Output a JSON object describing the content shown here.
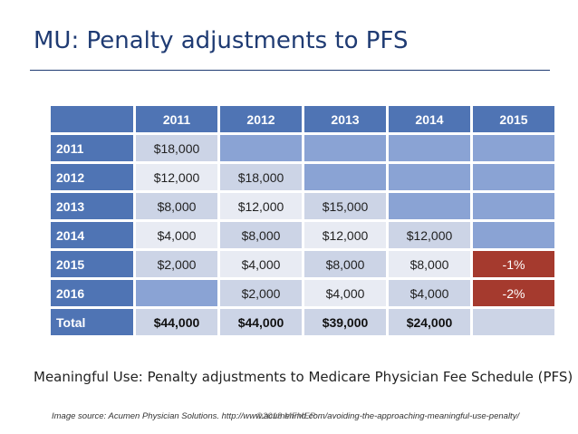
{
  "title": "MU: Penalty adjustments to PFS",
  "table": {
    "columns": [
      "2011",
      "2012",
      "2013",
      "2014",
      "2015"
    ],
    "rows": [
      {
        "label": "2011",
        "cells": [
          "$18,000",
          "",
          "",
          "",
          ""
        ],
        "styles": [
          "light",
          "blue",
          "blue",
          "blue",
          "blue"
        ]
      },
      {
        "label": "2012",
        "cells": [
          "$12,000",
          "$18,000",
          "",
          "",
          ""
        ],
        "styles": [
          "white",
          "light",
          "blue",
          "blue",
          "blue"
        ]
      },
      {
        "label": "2013",
        "cells": [
          "$8,000",
          "$12,000",
          "$15,000",
          "",
          ""
        ],
        "styles": [
          "light",
          "white",
          "light",
          "blue",
          "blue"
        ]
      },
      {
        "label": "2014",
        "cells": [
          "$4,000",
          "$8,000",
          "$12,000",
          "$12,000",
          ""
        ],
        "styles": [
          "white",
          "light",
          "white",
          "light",
          "blue"
        ]
      },
      {
        "label": "2015",
        "cells": [
          "$2,000",
          "$4,000",
          "$8,000",
          "$8,000",
          "-1%"
        ],
        "styles": [
          "light",
          "white",
          "light",
          "white",
          "red"
        ]
      },
      {
        "label": "2016",
        "cells": [
          "",
          "$2,000",
          "$4,000",
          "$4,000",
          "-2%"
        ],
        "styles": [
          "blue",
          "light",
          "white",
          "light",
          "red"
        ]
      }
    ],
    "total": {
      "label": "Total",
      "cells": [
        "$44,000",
        "$44,000",
        "$39,000",
        "$24,000",
        ""
      ]
    }
  },
  "caption": "Meaningful Use: Penalty adjustments to Medicare Physician Fee Schedule (PFS)",
  "source": "Image source: Acumen Physician Solutions. http://www.acumenmd.com/avoiding-the-approaching-meaningful-use-penalty/",
  "watermark": "©2013 MFMER"
}
